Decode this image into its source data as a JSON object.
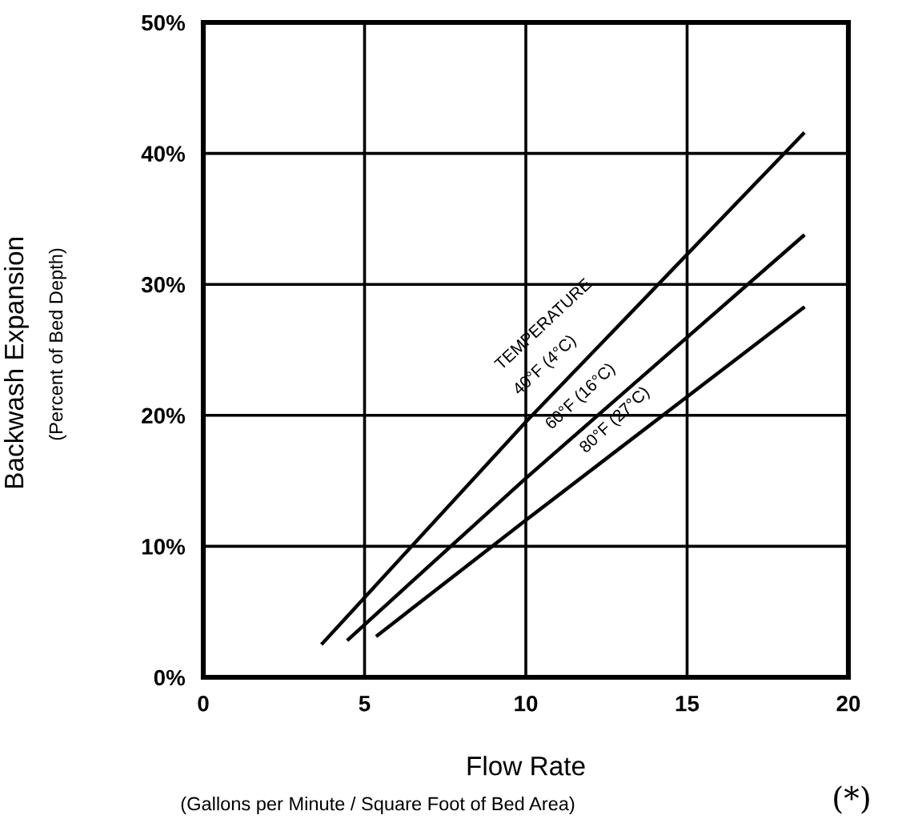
{
  "chart_data": {
    "type": "line",
    "xlabel": "Flow Rate",
    "ylabel": "Backwash Expansion",
    "xlim": [
      0,
      20
    ],
    "ylim": [
      0,
      50
    ],
    "xticks": [
      0,
      5,
      10,
      15,
      20
    ],
    "yticks": [
      {
        "value": 0,
        "label": "0%"
      },
      {
        "value": 10,
        "label": "10%"
      },
      {
        "value": 20,
        "label": "20%"
      },
      {
        "value": 30,
        "label": "30%"
      },
      {
        "value": 40,
        "label": "40%"
      },
      {
        "value": 50,
        "label": "50%"
      }
    ],
    "grid": true,
    "legend": false,
    "marker": "none",
    "line_style": "solid",
    "series": [
      {
        "name": "40°F (4°C)",
        "color": "#000000",
        "x": [
          3.7,
          10,
          18.6
        ],
        "values": [
          2.6,
          19.5,
          41.5
        ]
      },
      {
        "name": "60°F (16°C)",
        "color": "#000000",
        "x": [
          4.5,
          10,
          18.6
        ],
        "values": [
          2.9,
          15.2,
          33.7
        ]
      },
      {
        "name": "80°F (27°C)",
        "color": "#000000",
        "x": [
          5.4,
          10,
          18.6
        ],
        "values": [
          3.2,
          12.0,
          28.2
        ]
      }
    ],
    "annotations": [
      "TEMPERATURE",
      "(Percent of Bed Depth)",
      "(Gallons per Minute / Square Foot of Bed Area)",
      "(*)"
    ]
  }
}
